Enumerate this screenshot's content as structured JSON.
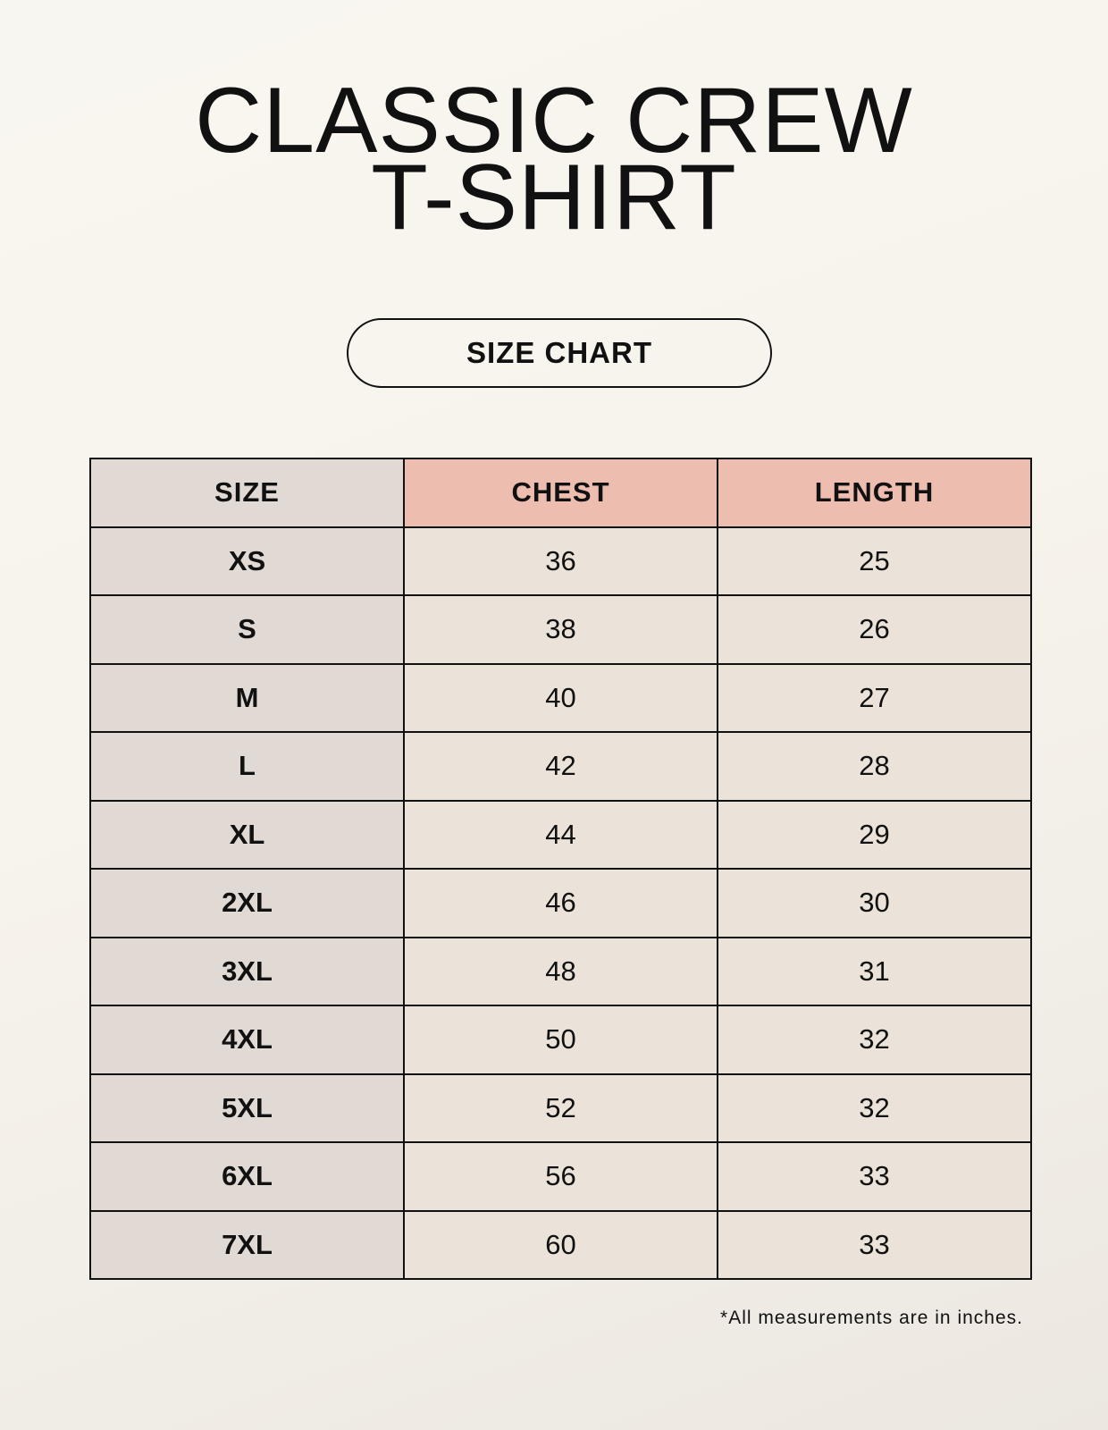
{
  "title_lines": [
    "CLASSIC CREW",
    "T-SHIRT"
  ],
  "subtitle": "SIZE CHART",
  "table": {
    "headers": [
      "SIZE",
      "CHEST",
      "LENGTH"
    ],
    "rows": [
      [
        "XS",
        "36",
        "25"
      ],
      [
        "S",
        "38",
        "26"
      ],
      [
        "M",
        "40",
        "27"
      ],
      [
        "L",
        "42",
        "28"
      ],
      [
        "XL",
        "44",
        "29"
      ],
      [
        "2XL",
        "46",
        "30"
      ],
      [
        "3XL",
        "48",
        "31"
      ],
      [
        "4XL",
        "50",
        "32"
      ],
      [
        "5XL",
        "52",
        "32"
      ],
      [
        "6XL",
        "56",
        "33"
      ],
      [
        "7XL",
        "60",
        "33"
      ]
    ]
  },
  "footnote": "*All measurements are in inches.",
  "colors": {
    "size_column": "#e0d9d4",
    "header_highlight": "#edbdb0",
    "value_cells": "#ebe3d9"
  }
}
